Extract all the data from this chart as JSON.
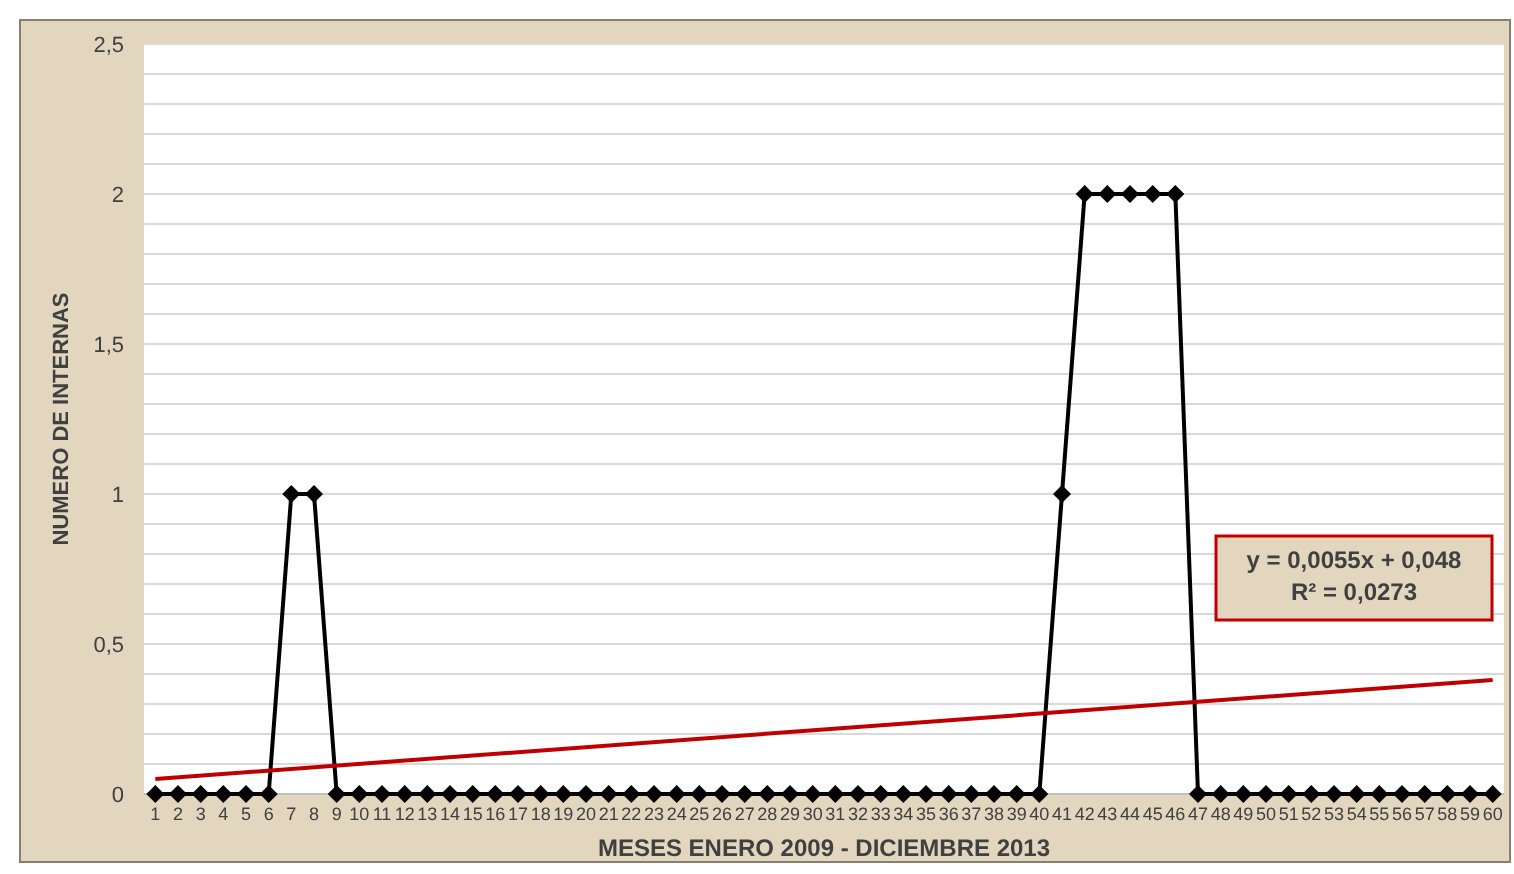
{
  "chart_data": {
    "type": "line",
    "xlabel": "MESES ENERO 2009 - DICIEMBRE 2013",
    "ylabel": "NUMERO DE INTERNAS",
    "x": [
      1,
      2,
      3,
      4,
      5,
      6,
      7,
      8,
      9,
      10,
      11,
      12,
      13,
      14,
      15,
      16,
      17,
      18,
      19,
      20,
      21,
      22,
      23,
      24,
      25,
      26,
      27,
      28,
      29,
      30,
      31,
      32,
      33,
      34,
      35,
      36,
      37,
      38,
      39,
      40,
      41,
      42,
      43,
      44,
      45,
      46,
      47,
      48,
      49,
      50,
      51,
      52,
      53,
      54,
      55,
      56,
      57,
      58,
      59,
      60
    ],
    "series": [
      {
        "color": "#000000",
        "marker": "diamond",
        "values": [
          0,
          0,
          0,
          0,
          0,
          0,
          1,
          1,
          0,
          0,
          0,
          0,
          0,
          0,
          0,
          0,
          0,
          0,
          0,
          0,
          0,
          0,
          0,
          0,
          0,
          0,
          0,
          0,
          0,
          0,
          0,
          0,
          0,
          0,
          0,
          0,
          0,
          0,
          0,
          0,
          1,
          2,
          2,
          2,
          2,
          2,
          0,
          0,
          0,
          0,
          0,
          0,
          0,
          0,
          0,
          0,
          0,
          0,
          0,
          0
        ]
      },
      {
        "type": "line",
        "color": "#c00000",
        "marker": "none",
        "x": [
          1,
          60
        ],
        "values": [
          0.05,
          0.38
        ]
      }
    ],
    "xlim": [
      0.5,
      60.5
    ],
    "xticks": [
      1,
      2,
      3,
      4,
      5,
      6,
      7,
      8,
      9,
      10,
      11,
      12,
      13,
      14,
      15,
      16,
      17,
      18,
      19,
      20,
      21,
      22,
      23,
      24,
      25,
      26,
      27,
      28,
      29,
      30,
      31,
      32,
      33,
      34,
      35,
      36,
      37,
      38,
      39,
      40,
      41,
      42,
      43,
      44,
      45,
      46,
      47,
      48,
      49,
      50,
      51,
      52,
      53,
      54,
      55,
      56,
      57,
      58,
      59,
      60
    ],
    "ylim": [
      0,
      2.5
    ],
    "yticks": [
      0,
      {
        "value": 0.1,
        "label": null
      },
      {
        "value": 0.2,
        "label": null
      },
      {
        "value": 0.3,
        "label": null
      },
      {
        "value": 0.4,
        "label": null
      },
      {
        "value": 0.5,
        "label": "0,5"
      },
      {
        "value": 0.6,
        "label": null
      },
      {
        "value": 0.7,
        "label": null
      },
      {
        "value": 0.8,
        "label": null
      },
      {
        "value": 0.9,
        "label": null
      },
      1,
      {
        "value": 1.1,
        "label": null
      },
      {
        "value": 1.2,
        "label": null
      },
      {
        "value": 1.3,
        "label": null
      },
      {
        "value": 1.4,
        "label": null
      },
      {
        "value": 1.5,
        "label": "1,5"
      },
      {
        "value": 1.6,
        "label": null
      },
      {
        "value": 1.7,
        "label": null
      },
      {
        "value": 1.8,
        "label": null
      },
      {
        "value": 1.9,
        "label": null
      },
      2,
      {
        "value": 2.1,
        "label": null
      },
      {
        "value": 2.2,
        "label": null
      },
      {
        "value": 2.3,
        "label": null
      },
      {
        "value": 2.4,
        "label": null
      },
      {
        "value": 2.5,
        "label": "2,5"
      }
    ],
    "grid": "y",
    "annotations": [
      "y = 0,0055x + 0,048",
      "R² = 0,0273"
    ]
  }
}
